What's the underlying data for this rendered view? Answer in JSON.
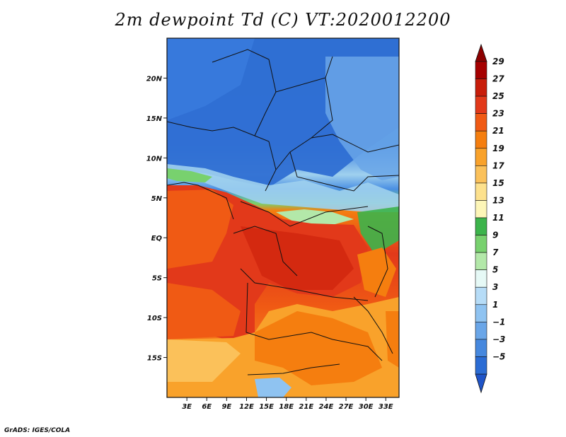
{
  "title": "2m dewpoint Td (C) VT:2020012200",
  "footer": "GrADS: IGES/COLA",
  "map": {
    "lon_range": [
      0,
      35
    ],
    "lat_range": [
      -20,
      25
    ],
    "lat_ticks": [
      {
        "lat": 20,
        "label": "20N"
      },
      {
        "lat": 15,
        "label": "15N"
      },
      {
        "lat": 10,
        "label": "10N"
      },
      {
        "lat": 5,
        "label": "5N"
      },
      {
        "lat": 0,
        "label": "EQ"
      },
      {
        "lat": -5,
        "label": "5S"
      },
      {
        "lat": -10,
        "label": "10S"
      },
      {
        "lat": -15,
        "label": "15S"
      }
    ],
    "lon_ticks": [
      {
        "lon": 3,
        "label": "3E"
      },
      {
        "lon": 6,
        "label": "6E"
      },
      {
        "lon": 9,
        "label": "9E"
      },
      {
        "lon": 12,
        "label": "12E"
      },
      {
        "lon": 15,
        "label": "15E"
      },
      {
        "lon": 18,
        "label": "18E"
      },
      {
        "lon": 21,
        "label": "21E"
      },
      {
        "lon": 24,
        "label": "24E"
      },
      {
        "lon": 27,
        "label": "27E"
      },
      {
        "lon": 30,
        "label": "30E"
      },
      {
        "lon": 33,
        "label": "33E"
      }
    ]
  },
  "colorbar": {
    "levels": [
      {
        "label": "29",
        "color": "#a50000"
      },
      {
        "label": "27",
        "color": "#c81d0a"
      },
      {
        "label": "25",
        "color": "#e2391a"
      },
      {
        "label": "23",
        "color": "#f05a14"
      },
      {
        "label": "21",
        "color": "#f57e0f"
      },
      {
        "label": "19",
        "color": "#f9a22b"
      },
      {
        "label": "17",
        "color": "#fbc15a"
      },
      {
        "label": "15",
        "color": "#fde18d"
      },
      {
        "label": "13",
        "color": "#fdf6b8"
      },
      {
        "label": "11",
        "color": "#3cb44b"
      },
      {
        "label": "9",
        "color": "#78d16e"
      },
      {
        "label": "7",
        "color": "#b3e8a9"
      },
      {
        "label": "5",
        "color": "#e6f9f6"
      },
      {
        "label": "3",
        "color": "#b6dcf7"
      },
      {
        "label": "1",
        "color": "#8fc3f1"
      },
      {
        "label": "−1",
        "color": "#6aa6e8"
      },
      {
        "label": "−3",
        "color": "#4688de"
      },
      {
        "label": "−5",
        "color": "#2b6cd4"
      }
    ],
    "under_color": "#1f54c8",
    "over_color": "#8c0000"
  }
}
